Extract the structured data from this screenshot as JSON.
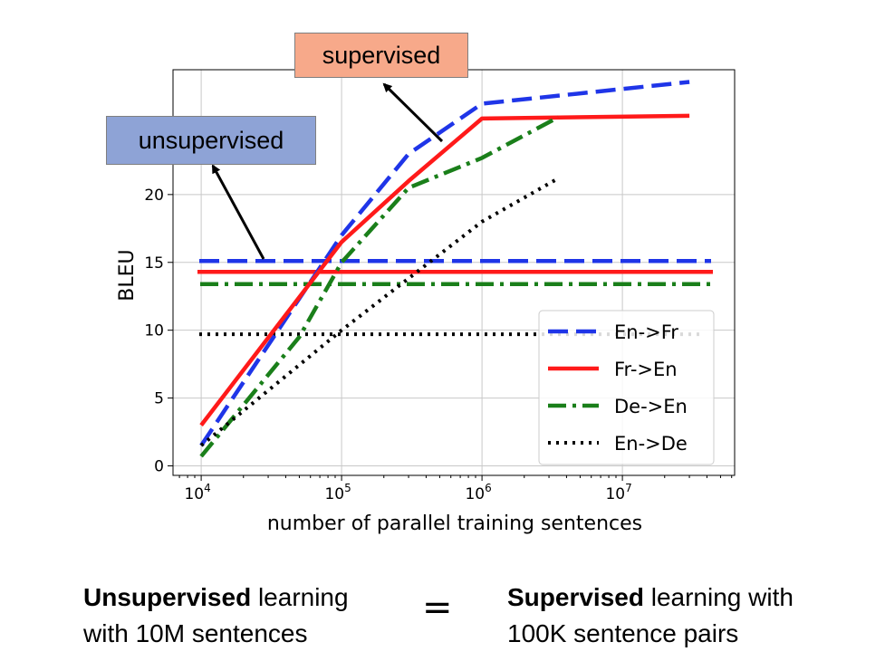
{
  "chart_data": {
    "type": "line",
    "title": "",
    "xlabel": "number of parallel training sentences",
    "ylabel": "BLEU",
    "xscale": "log",
    "xlim": [
      6300,
      63000000
    ],
    "ylim": [
      -0.7,
      29.2
    ],
    "xticks": [
      10000,
      100000,
      1000000,
      10000000
    ],
    "xtick_labels": [
      {
        "base": "10",
        "exp": "4"
      },
      {
        "base": "10",
        "exp": "5"
      },
      {
        "base": "10",
        "exp": "6"
      },
      {
        "base": "10",
        "exp": "7"
      }
    ],
    "yticks": [
      0,
      5,
      10,
      15,
      20
    ],
    "ytick_labels": [
      "0",
      "5",
      "10",
      "15",
      "20"
    ],
    "grid": true,
    "legend_position": "lower-right",
    "series": [
      {
        "name": "En->Fr",
        "color": "#1f35e8",
        "dash": "dashed",
        "x": [
          10000,
          100000,
          300000,
          1000000,
          30000000
        ],
        "y": [
          1.5,
          17,
          23,
          26.7,
          28.3
        ],
        "unsupervised_baseline": 15.1
      },
      {
        "name": "Fr->En",
        "color": "#ff1a1a",
        "dash": "solid",
        "x": [
          10000,
          100000,
          300000,
          1000000,
          30000000
        ],
        "y": [
          3,
          16.5,
          21,
          25.6,
          25.8
        ],
        "unsupervised_baseline": 14.3
      },
      {
        "name": "De->En",
        "color": "#1a7f1a",
        "dash": "dashdot",
        "x": [
          10000,
          50000,
          100000,
          300000,
          1000000,
          3500000
        ],
        "y": [
          0.7,
          9.5,
          15,
          20.5,
          22.7,
          25.7
        ],
        "unsupervised_baseline": 13.4
      },
      {
        "name": "En->De",
        "color": "#000000",
        "dash": "dotted",
        "x": [
          10000,
          100000,
          1000000,
          3500000
        ],
        "y": [
          1.5,
          10,
          18,
          21.2
        ],
        "unsupervised_baseline": 9.7
      }
    ]
  },
  "annotations": {
    "supervised_label": "supervised",
    "unsupervised_label": "unsupervised"
  },
  "caption": {
    "left_bold": "Unsupervised",
    "left_line1_rest": " learning",
    "left_line2": "with 10M sentences",
    "equals": "=",
    "right_bold": "Supervised",
    "right_line1_rest": " learning with",
    "right_line2": "100K sentence pairs"
  }
}
